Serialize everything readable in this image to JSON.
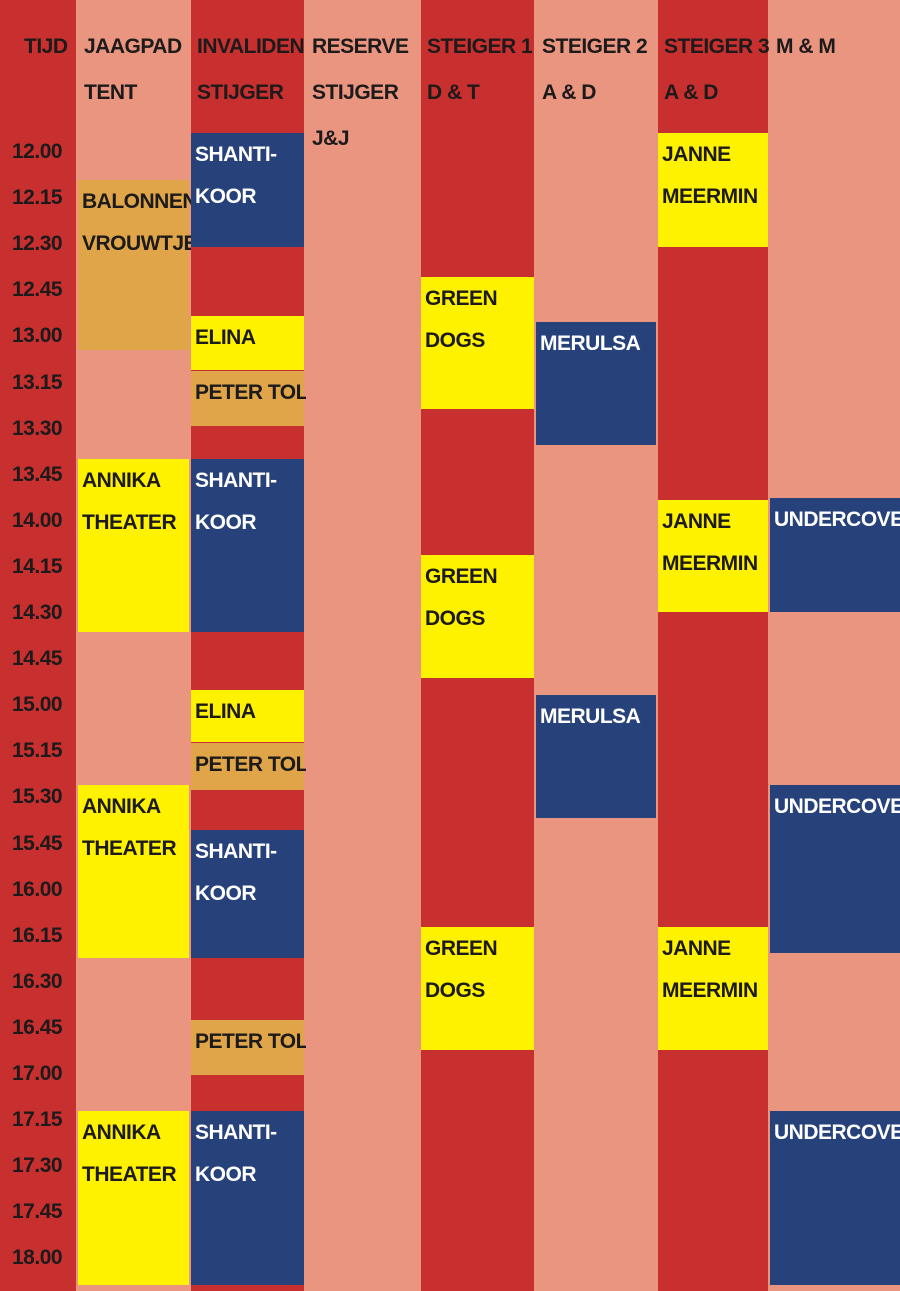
{
  "times": [
    "12.00",
    "12.15",
    "12.30",
    "12.45",
    "13.00",
    "13.15",
    "13.30",
    "13.45",
    "14.00",
    "14.15",
    "14.30",
    "14.45",
    "15.00",
    "15.15",
    "15.30",
    "15.45",
    "16.00",
    "16.15",
    "16.30",
    "16.45",
    "17.00",
    "17.15",
    "17.30",
    "17.45",
    "18.00"
  ],
  "columns": [
    {
      "header": [
        "TIJD"
      ],
      "blocks": []
    },
    {
      "header": [
        "JAAGPAD",
        "TENT"
      ],
      "blocks": [
        {
          "lines": [
            "BALONNEN",
            "VROUWTJE"
          ]
        },
        {
          "lines": [
            "ANNIKA",
            "THEATER"
          ]
        },
        {
          "lines": [
            "ANNIKA",
            "THEATER"
          ]
        },
        {
          "lines": [
            "ANNIKA",
            "THEATER"
          ]
        }
      ]
    },
    {
      "header": [
        "INVALIDEN",
        "STIJGER"
      ],
      "blocks": [
        {
          "lines": [
            "SHANTI-",
            "KOOR"
          ]
        },
        {
          "lines": [
            "ELINA"
          ]
        },
        {
          "lines": [
            "PETER TOL"
          ]
        },
        {
          "lines": [
            "SHANTI-",
            "KOOR"
          ]
        },
        {
          "lines": [
            "ELINA"
          ]
        },
        {
          "lines": [
            "PETER TOL"
          ]
        },
        {
          "lines": [
            "SHANTI-",
            "KOOR"
          ]
        },
        {
          "lines": [
            "PETER TOL"
          ]
        },
        {
          "lines": [
            "SHANTI-",
            "KOOR"
          ]
        }
      ]
    },
    {
      "header": [
        "RESERVE",
        "STIJGER",
        "J&J"
      ],
      "blocks": []
    },
    {
      "header": [
        "STEIGER 1",
        "D & T"
      ],
      "blocks": [
        {
          "lines": [
            "GREEN",
            "DOGS"
          ]
        },
        {
          "lines": [
            "GREEN",
            "DOGS"
          ]
        },
        {
          "lines": [
            "GREEN",
            "DOGS"
          ]
        }
      ]
    },
    {
      "header": [
        "STEIGER 2",
        "A & D"
      ],
      "blocks": [
        {
          "lines": [
            "MERULSA"
          ]
        },
        {
          "lines": [
            "MERULSA"
          ]
        }
      ]
    },
    {
      "header": [
        "STEIGER 3",
        "A & D"
      ],
      "blocks": [
        {
          "lines": [
            "JANNE",
            "MEERMIN"
          ]
        },
        {
          "lines": [
            "JANNE",
            "MEERMIN"
          ]
        },
        {
          "lines": [
            "JANNE",
            "MEERMIN"
          ]
        }
      ]
    },
    {
      "header": [
        "M & M"
      ],
      "blocks": [
        {
          "lines": [
            "UNDERCOVER"
          ]
        },
        {
          "lines": [
            "UNDERCOVER"
          ]
        },
        {
          "lines": [
            "UNDERCOVER"
          ]
        }
      ]
    }
  ]
}
